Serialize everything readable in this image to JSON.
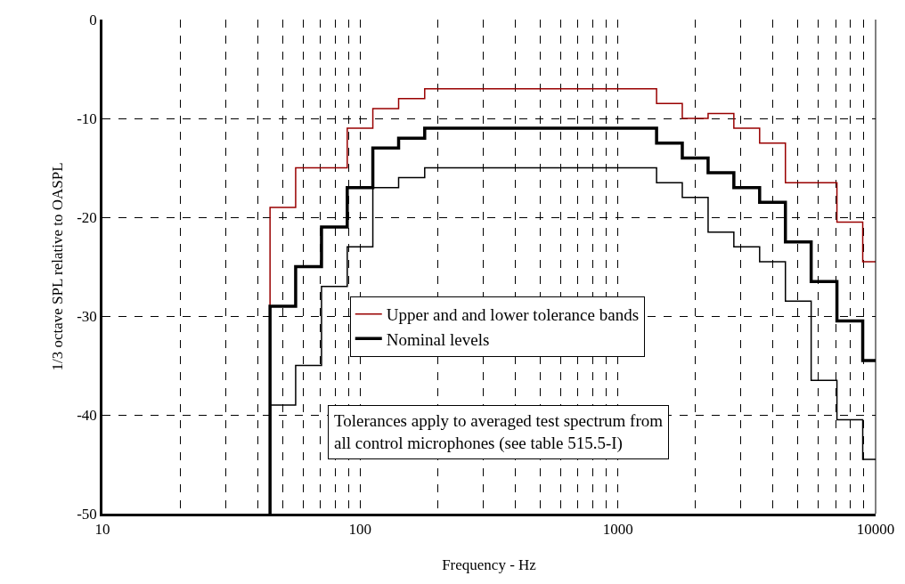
{
  "chart_data": {
    "type": "step",
    "xlabel": "Frequency - Hz",
    "ylabel": "1/3 octave SPL relative to OASPL",
    "x": [
      44.7,
      44.7,
      56.2,
      70.8,
      89.1,
      112,
      141,
      178,
      1413,
      1778,
      2239,
      2818,
      3548,
      4467,
      5623,
      7079,
      8913,
      10000
    ],
    "series": [
      {
        "name": "Upper and and lower tolerance bands",
        "color": "#990000",
        "values": [
          -50,
          -19,
          -15,
          -15,
          -11,
          -9,
          -8,
          -7,
          -8.5,
          -10,
          -9.5,
          -11,
          -12.5,
          -16.5,
          -16.5,
          -20.5,
          -24.5,
          -24.5
        ]
      },
      {
        "name": "Nominal levels",
        "color": "#000000",
        "values": [
          -50,
          -29,
          -25,
          -21,
          -17,
          -13,
          -12,
          -11,
          -12.5,
          -14,
          -15.5,
          -17,
          -18.5,
          -22.5,
          -26.5,
          -30.5,
          -34.5,
          -34.5
        ]
      },
      {
        "color": "#000000",
        "values": [
          -50,
          -39,
          -35,
          -27,
          -23,
          -17,
          -16,
          -15,
          -16.5,
          -18,
          -21.5,
          -23,
          -24.5,
          -28.5,
          -36.5,
          -40.5,
          -44.5,
          -44.5
        ]
      }
    ],
    "log": "x",
    "xlim": [
      10,
      10000
    ],
    "xticks": [
      10,
      {
        "value": 20,
        "label": null
      },
      {
        "value": 30,
        "label": null
      },
      {
        "value": 40,
        "label": null
      },
      {
        "value": 50,
        "label": null
      },
      {
        "value": 60,
        "label": null
      },
      {
        "value": 70,
        "label": null
      },
      {
        "value": 80,
        "label": null
      },
      {
        "value": 90,
        "label": null
      },
      100,
      {
        "value": 200,
        "label": null
      },
      {
        "value": 300,
        "label": null
      },
      {
        "value": 400,
        "label": null
      },
      {
        "value": 500,
        "label": null
      },
      {
        "value": 600,
        "label": null
      },
      {
        "value": 700,
        "label": null
      },
      {
        "value": 800,
        "label": null
      },
      {
        "value": 900,
        "label": null
      },
      1000,
      {
        "value": 2000,
        "label": null
      },
      {
        "value": 3000,
        "label": null
      },
      {
        "value": 4000,
        "label": null
      },
      {
        "value": 5000,
        "label": null
      },
      {
        "value": 6000,
        "label": null
      },
      {
        "value": 7000,
        "label": null
      },
      {
        "value": 8000,
        "label": null
      },
      {
        "value": 9000,
        "label": null
      },
      10000
    ],
    "ylim": [
      -50,
      0
    ],
    "yticks": [
      -50,
      -40,
      -30,
      -20,
      -10,
      0
    ],
    "grid": true,
    "legend": "center",
    "marker": "none",
    "line_style": "solid",
    "annotations": [
      "Tolerances apply to averaged test spectrum from all control microphones (see table 515.5-I)"
    ]
  }
}
